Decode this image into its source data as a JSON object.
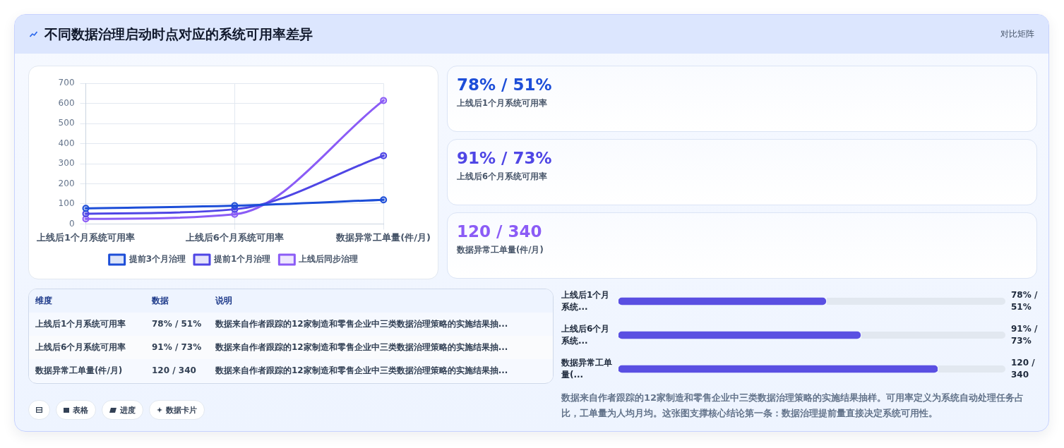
{
  "chart_data": [
    {
      "type": "other",
      "title": "不同数据治理启动时点对应的系统可用率差异",
      "annotations": [
        "对比矩阵"
      ]
    },
    {
      "type": "line",
      "categories": [
        "上线后1个月系统可用率",
        "上线后6个月系统可用率",
        "数据异常工单量(件/月)"
      ],
      "series": [
        {
          "name": "提前3个月治理",
          "color": "#1d4ed8",
          "values": [
            78,
            91,
            120
          ]
        },
        {
          "name": "提前1个月治理",
          "color": "#4f46e5",
          "values": [
            51,
            73,
            340
          ]
        },
        {
          "name": "上线后同步治理",
          "color": "#8b5cf6",
          "values": [
            25,
            48,
            615
          ]
        }
      ],
      "ylim": [
        0,
        700
      ],
      "yticks": [
        0,
        100,
        200,
        300,
        400,
        500,
        600,
        700
      ],
      "grid": true,
      "legend": "bottom",
      "marker": "circle"
    },
    {
      "type": "other",
      "title": "78% / 51%",
      "subtitle": "上线后1个月系统可用率",
      "color": "#1d4ed8"
    },
    {
      "type": "other",
      "title": "91% / 73%",
      "subtitle": "上线后6个月系统可用率",
      "color": "#4f46e5"
    },
    {
      "type": "other",
      "title": "120 / 340",
      "subtitle": "数据异常工单量(件/月)",
      "color": "#8b5cf6"
    },
    {
      "type": "other",
      "annotations": [
        "维度",
        "数据",
        "说明",
        "上线后1个月系统可用率",
        "78% / 51%",
        "数据来自作者跟踪的12家制造和零售企业中三类数据治理策略的实施结果抽...",
        "上线后6个月系统可用率",
        "91% / 73%",
        "数据来自作者跟踪的12家制造和零售企业中三类数据治理策略的实施结果抽...",
        "数据异常工单量(件/月)",
        "120 / 340",
        "数据来自作者跟踪的12家制造和零售企业中三类数据治理策略的实施结果抽..."
      ]
    },
    {
      "type": "bar",
      "orientation": "horizontal",
      "categories": [
        "上线后1个月系统...",
        "上线后6个月系统...",
        "数据异常工单量(..."
      ],
      "values": [
        78,
        91,
        120
      ],
      "value_labels": [
        "78% / 51%",
        "91% / 73%",
        "120 / 340"
      ],
      "color": "#5a4fe2",
      "annotations": [
        "数据来自作者跟踪的12家制造和零售企业中三类数据治理策略的实施结果抽样。可用率定义为系统自动处理任务占比，工单量为人均月均。这张图支撑核心结论第一条：数据治理提前量直接决定系统可用性。"
      ]
    },
    {
      "type": "other",
      "annotations": [
        "表格",
        "进度",
        "数据卡片"
      ]
    }
  ]
}
